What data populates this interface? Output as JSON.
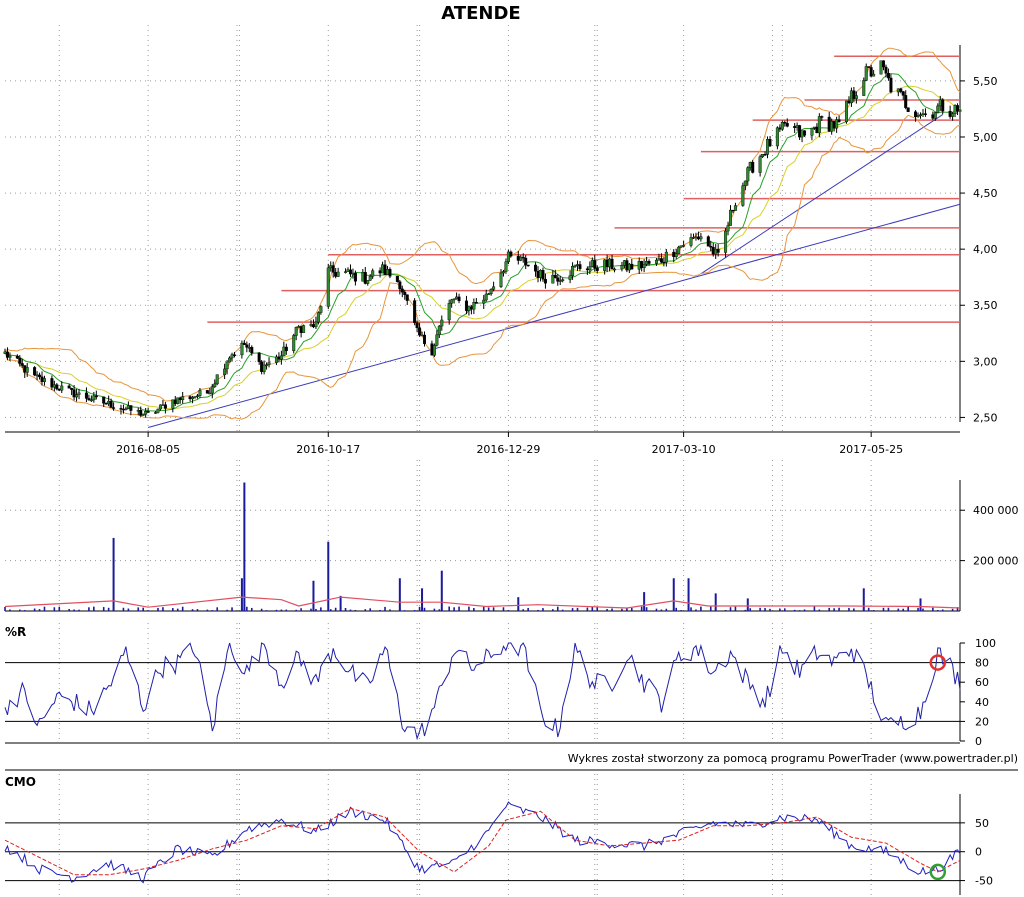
{
  "title": "ATENDE",
  "credit": "Wykres został stworzony za pomocą programu PowerTrader (www.powertrader.pl)",
  "colors": {
    "candle_up": "#2e8b2e",
    "candle_down": "#000000",
    "bollinger": "#e8953c",
    "ma_fast": "#2aa02a",
    "ma_slow": "#d8d02a",
    "support": "#e06060",
    "trendline": "#3b3bb8",
    "volume_bar": "#1a1a9c",
    "volume_avg": "#e05060",
    "wr_line": "#2020a8",
    "cmo_line": "#2020c0",
    "cmo_signal": "#e02020",
    "marker_red": "#e03030",
    "marker_green": "#30a030"
  },
  "chart_data": [
    {
      "type": "candlestick",
      "panel": "price",
      "title": "ATENDE",
      "x_tick_labels": [
        "2016-08-05",
        "2016-10-17",
        "2016-12-29",
        "2017-03-10",
        "2017-05-25"
      ],
      "y_ticks": [
        2.5,
        3.0,
        3.5,
        4.0,
        4.5,
        5.0,
        5.5
      ],
      "y_tick_labels": [
        "2,50",
        "3,00",
        "3,50",
        "4,00",
        "4,50",
        "5,00",
        "5,50"
      ],
      "ylim": [
        2.37,
        5.82
      ],
      "x_range": [
        "2016-06-08",
        "2017-06-30"
      ],
      "grid": true,
      "close_path": [
        [
          "2016-06-08",
          3.07
        ],
        [
          "2016-06-20",
          2.86
        ],
        [
          "2016-07-05",
          2.72
        ],
        [
          "2016-07-20",
          2.62
        ],
        [
          "2016-08-05",
          2.52
        ],
        [
          "2016-08-15",
          2.65
        ],
        [
          "2016-08-29",
          2.72
        ],
        [
          "2016-09-07",
          3.05
        ],
        [
          "2016-09-13",
          3.15
        ],
        [
          "2016-09-20",
          2.95
        ],
        [
          "2016-09-28",
          3.05
        ],
        [
          "2016-10-05",
          3.3
        ],
        [
          "2016-10-12",
          3.32
        ],
        [
          "2016-10-17",
          3.8
        ],
        [
          "2016-10-24",
          3.78
        ],
        [
          "2016-11-01",
          3.74
        ],
        [
          "2016-11-08",
          3.82
        ],
        [
          "2016-11-15",
          3.7
        ],
        [
          "2016-11-22",
          3.25
        ],
        [
          "2016-11-28",
          3.1
        ],
        [
          "2016-12-01",
          3.3
        ],
        [
          "2016-12-06",
          3.55
        ],
        [
          "2016-12-13",
          3.48
        ],
        [
          "2016-12-20",
          3.58
        ],
        [
          "2016-12-29",
          3.92
        ],
        [
          "2017-01-05",
          3.88
        ],
        [
          "2017-01-12",
          3.75
        ],
        [
          "2017-01-19",
          3.76
        ],
        [
          "2017-01-26",
          3.84
        ],
        [
          "2017-02-06",
          3.86
        ],
        [
          "2017-02-16",
          3.84
        ],
        [
          "2017-02-27",
          3.88
        ],
        [
          "2017-03-10",
          4.05
        ],
        [
          "2017-03-17",
          4.12
        ],
        [
          "2017-03-24",
          3.92
        ],
        [
          "2017-03-31",
          4.45
        ],
        [
          "2017-04-07",
          4.75
        ],
        [
          "2017-04-14",
          4.95
        ],
        [
          "2017-04-21",
          5.1
        ],
        [
          "2017-04-28",
          5.0
        ],
        [
          "2017-05-05",
          5.14
        ],
        [
          "2017-05-12",
          5.1
        ],
        [
          "2017-05-17",
          5.35
        ],
        [
          "2017-05-22",
          5.55
        ],
        [
          "2017-05-29",
          5.62
        ],
        [
          "2017-06-02",
          5.45
        ],
        [
          "2017-06-09",
          5.28
        ],
        [
          "2017-06-16",
          5.2
        ],
        [
          "2017-06-23",
          5.28
        ],
        [
          "2017-06-30",
          5.22
        ]
      ],
      "support_levels": [
        {
          "y": 5.72,
          "from": "2017-05-10",
          "to": "2017-06-30"
        },
        {
          "y": 5.33,
          "from": "2017-04-28",
          "to": "2017-06-30"
        },
        {
          "y": 5.15,
          "from": "2017-04-07",
          "to": "2017-06-30"
        },
        {
          "y": 4.87,
          "from": "2017-03-17",
          "to": "2017-06-30"
        },
        {
          "y": 4.45,
          "from": "2017-03-10",
          "to": "2017-06-30"
        },
        {
          "y": 4.19,
          "from": "2017-02-10",
          "to": "2017-06-30"
        },
        {
          "y": 3.95,
          "from": "2016-10-17",
          "to": "2017-06-30"
        },
        {
          "y": 3.63,
          "from": "2016-09-28",
          "to": "2017-06-30"
        },
        {
          "y": 3.35,
          "from": "2016-08-29",
          "to": "2017-06-30"
        }
      ],
      "trendlines": [
        {
          "from": [
            "2016-08-05",
            2.41
          ],
          "to": [
            "2017-06-30",
            4.4
          ]
        },
        {
          "from": [
            "2017-03-17",
            3.78
          ],
          "to": [
            "2017-06-23",
            5.2
          ]
        }
      ]
    },
    {
      "type": "bar",
      "panel": "volume",
      "y_ticks": [
        200000,
        400000
      ],
      "y_tick_labels": [
        "200 000",
        "400 000"
      ],
      "ylim": [
        0,
        520000
      ],
      "grid": true,
      "spikes": [
        [
          "2016-07-22",
          290000
        ],
        [
          "2016-09-13",
          510000
        ],
        [
          "2016-09-12",
          130000
        ],
        [
          "2016-10-17",
          275000
        ],
        [
          "2016-10-11",
          120000
        ],
        [
          "2016-10-22",
          60000
        ],
        [
          "2016-11-15",
          130000
        ],
        [
          "2016-12-02",
          160000
        ],
        [
          "2016-11-24",
          90000
        ],
        [
          "2017-01-02",
          55000
        ],
        [
          "2017-02-22",
          75000
        ],
        [
          "2017-03-06",
          130000
        ],
        [
          "2017-03-12",
          130000
        ],
        [
          "2017-03-23",
          70000
        ],
        [
          "2017-04-05",
          50000
        ],
        [
          "2017-05-22",
          90000
        ],
        [
          "2017-06-14",
          50000
        ]
      ],
      "baseline_level": 15000,
      "average_line": [
        [
          "2016-06-08",
          18000
        ],
        [
          "2016-07-22",
          40000
        ],
        [
          "2016-08-05",
          15000
        ],
        [
          "2016-09-12",
          55000
        ],
        [
          "2016-09-28",
          45000
        ],
        [
          "2016-10-05",
          20000
        ],
        [
          "2016-10-22",
          55000
        ],
        [
          "2016-11-15",
          35000
        ],
        [
          "2016-12-02",
          35000
        ],
        [
          "2016-12-20",
          18000
        ],
        [
          "2017-01-10",
          25000
        ],
        [
          "2017-02-15",
          12000
        ],
        [
          "2017-03-06",
          40000
        ],
        [
          "2017-03-20",
          20000
        ],
        [
          "2017-05-15",
          20000
        ],
        [
          "2017-06-14",
          18000
        ],
        [
          "2017-06-30",
          12000
        ]
      ]
    },
    {
      "type": "line",
      "panel": "williams",
      "title": "%R",
      "y_ticks": [
        0,
        20,
        40,
        60,
        80,
        100
      ],
      "y_tick_labels": [
        "0",
        "20",
        "40",
        "60",
        "80",
        "100"
      ],
      "ylim": [
        0,
        100
      ],
      "reference_lines": [
        20,
        80
      ],
      "grid": true,
      "series": [
        {
          "values": [
            [
              "2016-06-08",
              35
            ],
            [
              "2016-06-15",
              50
            ],
            [
              "2016-06-22",
              15
            ],
            [
              "2016-06-29",
              45
            ],
            [
              "2016-07-06",
              40
            ],
            [
              "2016-07-13",
              30
            ],
            [
              "2016-07-20",
              55
            ],
            [
              "2016-07-27",
              90
            ],
            [
              "2016-08-03",
              35
            ],
            [
              "2016-08-10",
              75
            ],
            [
              "2016-08-17",
              80
            ],
            [
              "2016-08-24",
              95
            ],
            [
              "2016-08-31",
              12
            ],
            [
              "2016-09-07",
              100
            ],
            [
              "2016-09-14",
              70
            ],
            [
              "2016-09-21",
              100
            ],
            [
              "2016-09-28",
              60
            ],
            [
              "2016-10-05",
              85
            ],
            [
              "2016-10-12",
              60
            ],
            [
              "2016-10-19",
              95
            ],
            [
              "2016-10-26",
              70
            ],
            [
              "2016-11-02",
              55
            ],
            [
              "2016-11-09",
              95
            ],
            [
              "2016-11-16",
              20
            ],
            [
              "2016-11-23",
              5
            ],
            [
              "2016-11-30",
              40
            ],
            [
              "2016-12-07",
              95
            ],
            [
              "2016-12-14",
              75
            ],
            [
              "2016-12-21",
              85
            ],
            [
              "2016-12-28",
              100
            ],
            [
              "2017-01-04",
              95
            ],
            [
              "2017-01-11",
              30
            ],
            [
              "2017-01-18",
              10
            ],
            [
              "2017-01-25",
              95
            ],
            [
              "2017-02-01",
              60
            ],
            [
              "2017-02-08",
              55
            ],
            [
              "2017-02-15",
              90
            ],
            [
              "2017-02-22",
              60
            ],
            [
              "2017-03-01",
              40
            ],
            [
              "2017-03-08",
              85
            ],
            [
              "2017-03-15",
              95
            ],
            [
              "2017-03-22",
              70
            ],
            [
              "2017-03-29",
              90
            ],
            [
              "2017-04-05",
              60
            ],
            [
              "2017-04-12",
              40
            ],
            [
              "2017-04-19",
              95
            ],
            [
              "2017-04-26",
              70
            ],
            [
              "2017-05-03",
              90
            ],
            [
              "2017-05-10",
              80
            ],
            [
              "2017-05-17",
              95
            ],
            [
              "2017-05-24",
              60
            ],
            [
              "2017-05-31",
              15
            ],
            [
              "2017-06-07",
              20
            ],
            [
              "2017-06-14",
              30
            ],
            [
              "2017-06-21",
              90
            ],
            [
              "2017-06-25",
              80
            ],
            [
              "2017-06-30",
              60
            ]
          ]
        }
      ],
      "marker": {
        "x": "2017-06-21",
        "y": 80,
        "color": "red"
      }
    },
    {
      "type": "line",
      "panel": "cmo",
      "title": "CMO",
      "y_ticks": [
        -50,
        0,
        50
      ],
      "y_tick_labels": [
        "-50",
        "0",
        "50"
      ],
      "ylim": [
        -75,
        100
      ],
      "reference_lines": [
        -50,
        0,
        50
      ],
      "grid": true,
      "series": [
        {
          "role": "cmo",
          "values": [
            [
              "2016-06-08",
              10
            ],
            [
              "2016-06-22",
              -30
            ],
            [
              "2016-07-06",
              -45
            ],
            [
              "2016-07-20",
              -20
            ],
            [
              "2016-08-03",
              -45
            ],
            [
              "2016-08-17",
              5
            ],
            [
              "2016-08-31",
              -10
            ],
            [
              "2016-09-14",
              40
            ],
            [
              "2016-09-28",
              55
            ],
            [
              "2016-10-12",
              35
            ],
            [
              "2016-10-26",
              70
            ],
            [
              "2016-11-09",
              55
            ],
            [
              "2016-11-23",
              -30
            ],
            [
              "2016-12-07",
              -20
            ],
            [
              "2016-12-21",
              35
            ],
            [
              "2016-12-28",
              80
            ],
            [
              "2017-01-11",
              60
            ],
            [
              "2017-01-25",
              20
            ],
            [
              "2017-02-08",
              15
            ],
            [
              "2017-02-22",
              10
            ],
            [
              "2017-03-08",
              30
            ],
            [
              "2017-03-22",
              50
            ],
            [
              "2017-04-05",
              45
            ],
            [
              "2017-04-19",
              60
            ],
            [
              "2017-05-03",
              55
            ],
            [
              "2017-05-17",
              10
            ],
            [
              "2017-05-31",
              0
            ],
            [
              "2017-06-14",
              -35
            ],
            [
              "2017-06-21",
              -30
            ],
            [
              "2017-06-30",
              0
            ]
          ]
        },
        {
          "role": "signal",
          "values": [
            [
              "2016-06-08",
              20
            ],
            [
              "2016-06-22",
              -10
            ],
            [
              "2016-07-06",
              -40
            ],
            [
              "2016-07-20",
              -40
            ],
            [
              "2016-08-03",
              -30
            ],
            [
              "2016-08-17",
              -15
            ],
            [
              "2016-08-31",
              5
            ],
            [
              "2016-09-14",
              20
            ],
            [
              "2016-09-28",
              45
            ],
            [
              "2016-10-12",
              40
            ],
            [
              "2016-10-26",
              75
            ],
            [
              "2016-11-09",
              60
            ],
            [
              "2016-11-23",
              0
            ],
            [
              "2016-12-07",
              -35
            ],
            [
              "2016-12-21",
              10
            ],
            [
              "2016-12-28",
              55
            ],
            [
              "2017-01-11",
              70
            ],
            [
              "2017-01-25",
              20
            ],
            [
              "2017-02-08",
              10
            ],
            [
              "2017-02-22",
              15
            ],
            [
              "2017-03-08",
              20
            ],
            [
              "2017-03-22",
              45
            ],
            [
              "2017-04-05",
              45
            ],
            [
              "2017-04-19",
              50
            ],
            [
              "2017-05-03",
              60
            ],
            [
              "2017-05-17",
              25
            ],
            [
              "2017-05-31",
              15
            ],
            [
              "2017-06-14",
              -20
            ],
            [
              "2017-06-21",
              -35
            ],
            [
              "2017-06-30",
              -15
            ]
          ]
        }
      ],
      "marker": {
        "x": "2017-06-21",
        "y": -35,
        "color": "green"
      }
    }
  ]
}
